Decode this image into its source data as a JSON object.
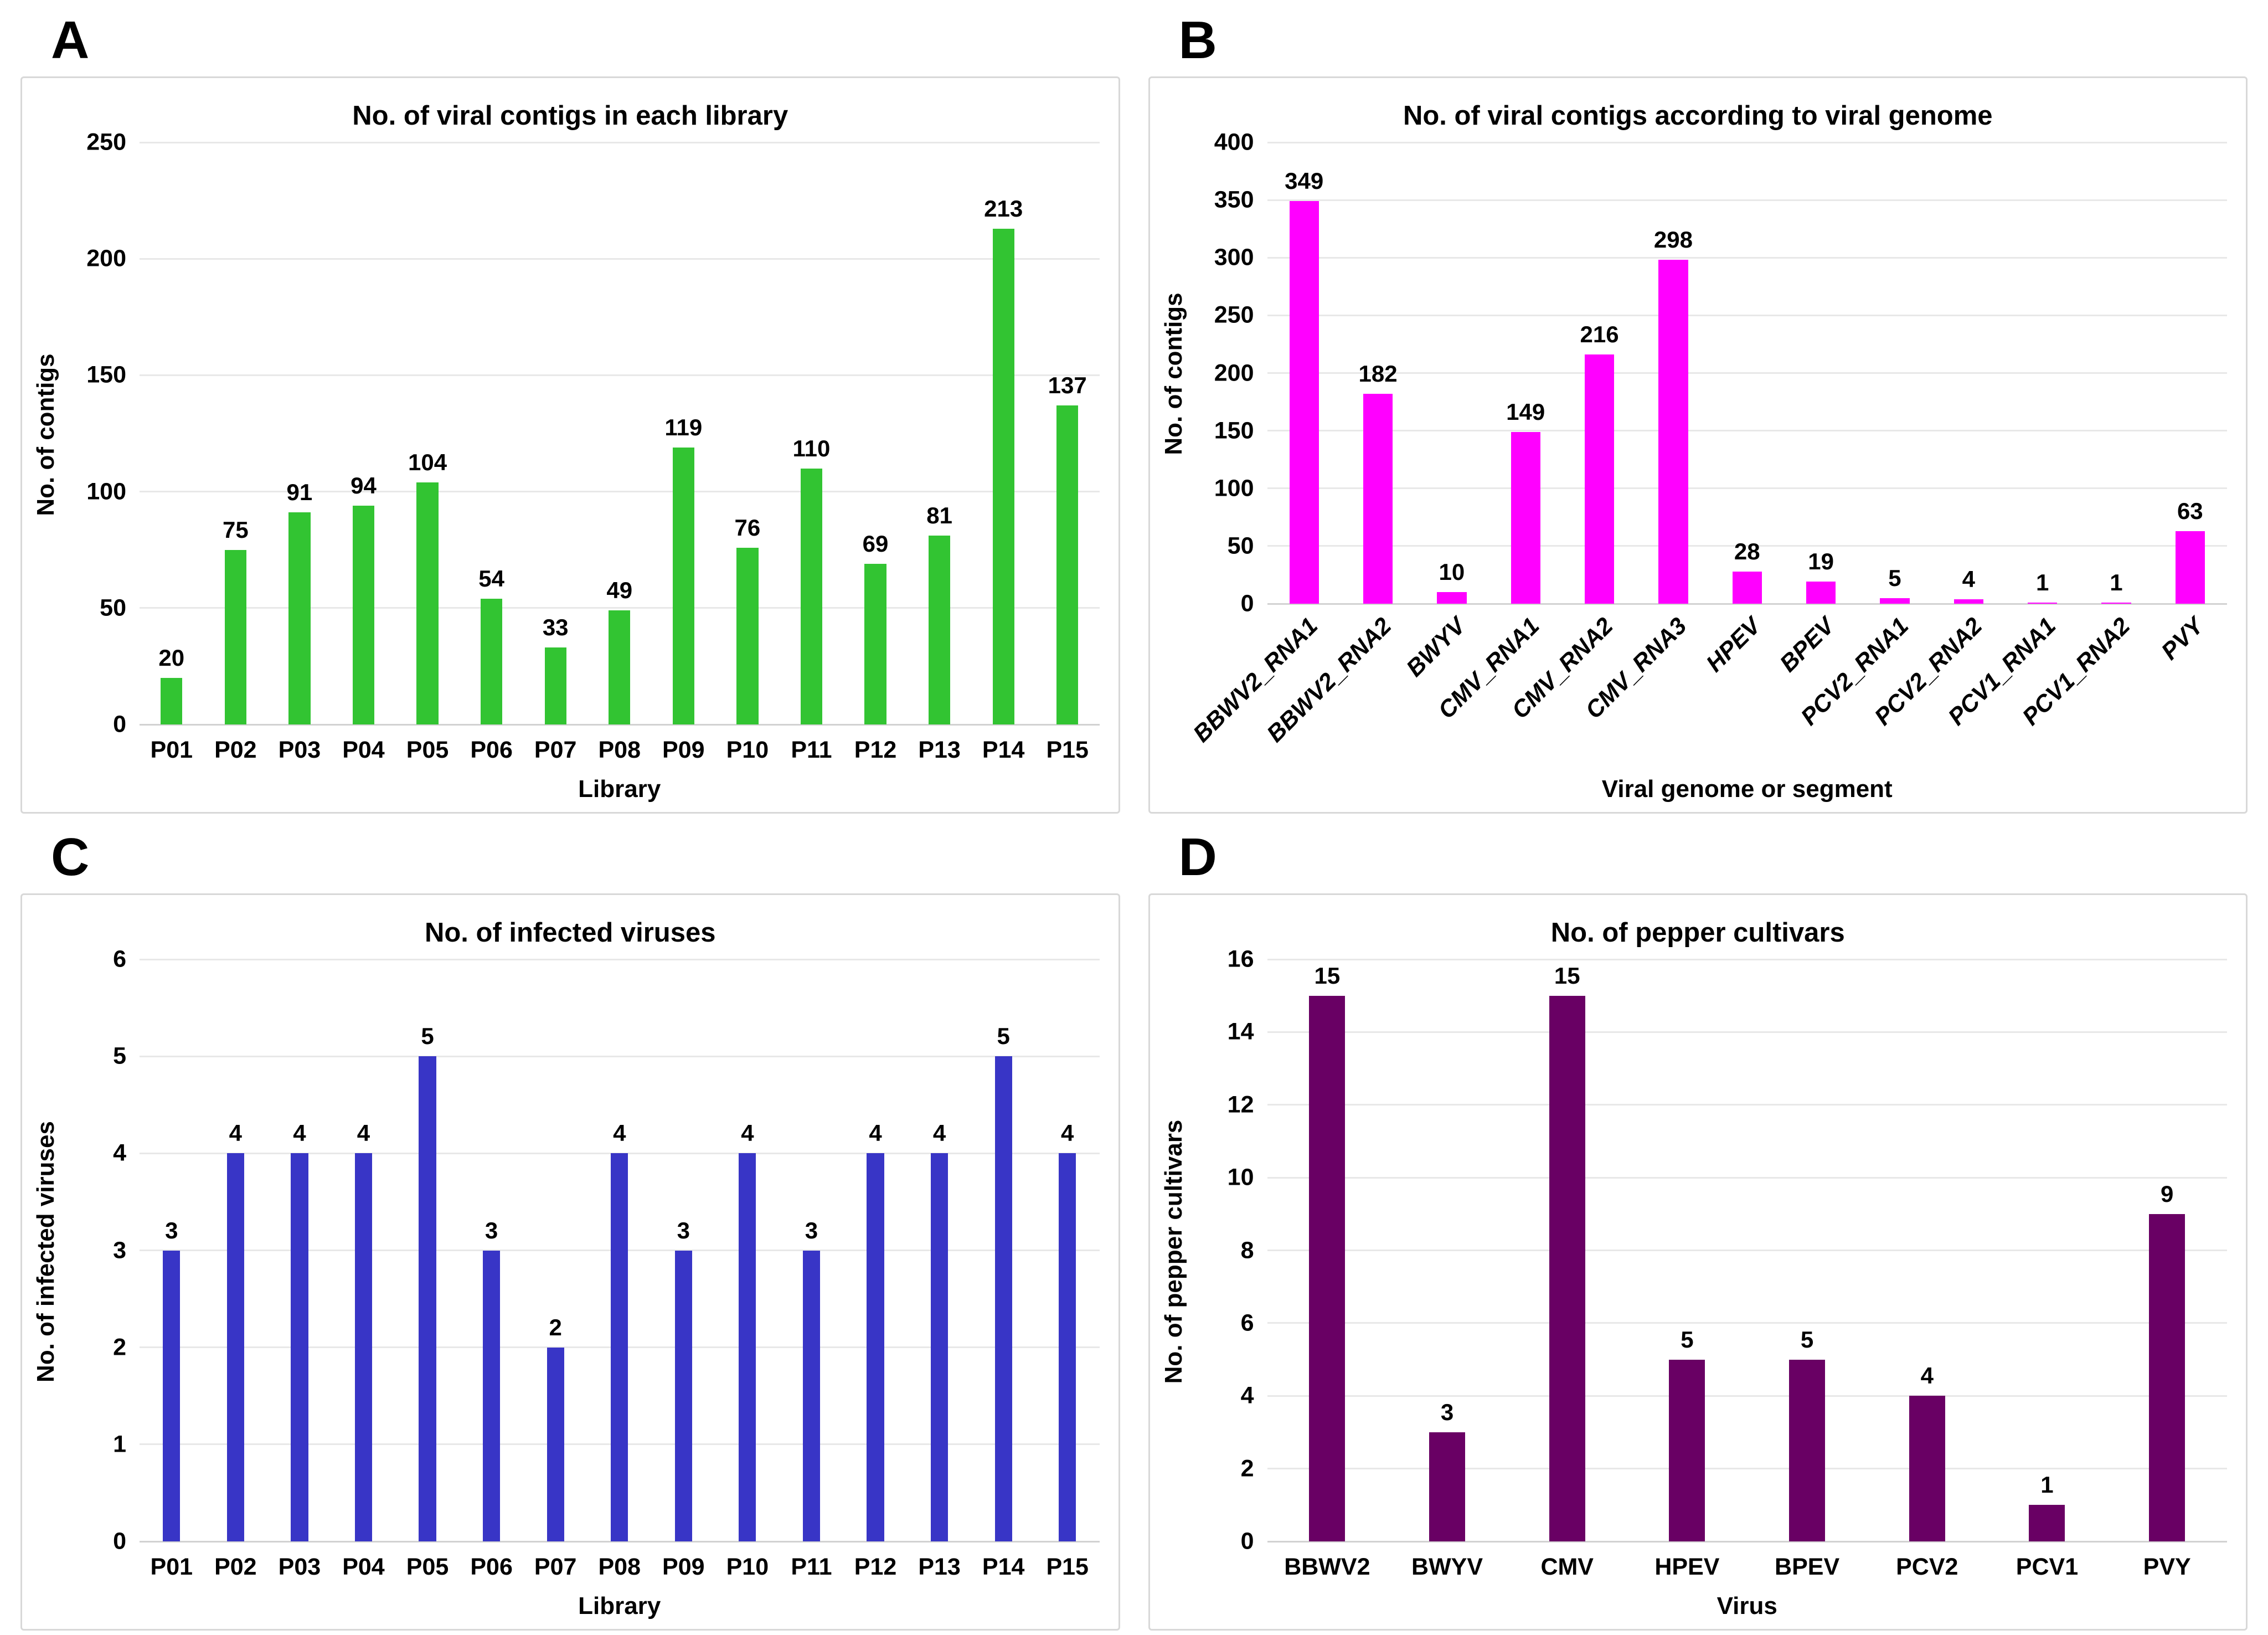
{
  "figure": {
    "background": "#ffffff",
    "panel_border_color": "#d8d8d8",
    "gridline_color": "#e8e8e8",
    "text_color": "#000000"
  },
  "chart_data": [
    {
      "panel_label": "A",
      "type": "bar",
      "title": "No. of viral contigs in each library",
      "xlabel": "Library",
      "ylabel": "No. of contigs",
      "categories": [
        "P01",
        "P02",
        "P03",
        "P04",
        "P05",
        "P06",
        "P07",
        "P08",
        "P09",
        "P10",
        "P11",
        "P12",
        "P13",
        "P14",
        "P15"
      ],
      "values": [
        20,
        75,
        91,
        94,
        104,
        54,
        33,
        49,
        119,
        76,
        110,
        69,
        81,
        213,
        137
      ],
      "ylim": [
        0,
        250
      ],
      "ytick_step": 50,
      "bar_color": "#32c432",
      "bar_frac": 0.34,
      "grid": true,
      "legend": false,
      "rotated_xticks": false
    },
    {
      "panel_label": "B",
      "type": "bar",
      "title": "No. of viral contigs according to viral genome",
      "xlabel": "Viral genome or segment",
      "ylabel": "No. of contigs",
      "categories": [
        "BBWV2_RNA1",
        "BBWV2_RNA2",
        "BWYV",
        "CMV_RNA1",
        "CMV_RNA2",
        "CMV_RNA3",
        "HPEV",
        "BPEV",
        "PCV2_RNA1",
        "PCV2_RNA2",
        "PCV1_RNA1",
        "PCV1_RNA2",
        "PVY"
      ],
      "values": [
        349,
        182,
        10,
        149,
        216,
        298,
        28,
        19,
        5,
        4,
        1,
        1,
        63
      ],
      "ylim": [
        0,
        400
      ],
      "ytick_step": 50,
      "bar_color": "#ff00ff",
      "bar_frac": 0.4,
      "grid": true,
      "legend": false,
      "rotated_xticks": true
    },
    {
      "panel_label": "C",
      "type": "bar",
      "title": "No. of infected viruses",
      "xlabel": "Library",
      "ylabel": "No. of infected viruses",
      "categories": [
        "P01",
        "P02",
        "P03",
        "P04",
        "P05",
        "P06",
        "P07",
        "P08",
        "P09",
        "P10",
        "P11",
        "P12",
        "P13",
        "P14",
        "P15"
      ],
      "values": [
        3,
        4,
        4,
        4,
        5,
        3,
        2,
        4,
        3,
        4,
        3,
        4,
        4,
        5,
        4
      ],
      "ylim": [
        0,
        6
      ],
      "ytick_step": 1,
      "bar_color": "#3835c6",
      "bar_frac": 0.27,
      "grid": true,
      "legend": false,
      "rotated_xticks": false
    },
    {
      "panel_label": "D",
      "type": "bar",
      "title": "No. of pepper cultivars",
      "xlabel": "Virus",
      "ylabel": "No. of pepper cultivars",
      "categories": [
        "BBWV2",
        "BWYV",
        "CMV",
        "HPEV",
        "BPEV",
        "PCV2",
        "PCV1",
        "PVY"
      ],
      "values": [
        15,
        3,
        15,
        5,
        5,
        4,
        1,
        9
      ],
      "ylim": [
        0,
        16
      ],
      "ytick_step": 2,
      "bar_color": "#690064",
      "bar_frac": 0.3,
      "grid": true,
      "legend": false,
      "rotated_xticks": false
    }
  ]
}
